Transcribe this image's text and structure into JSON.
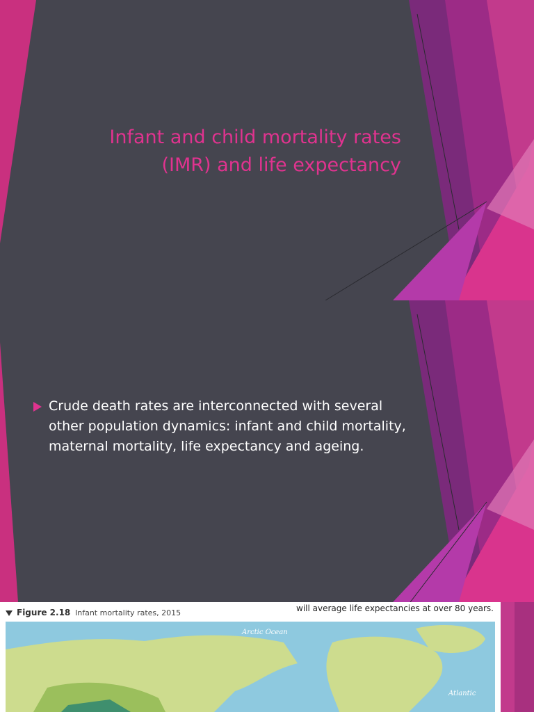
{
  "slides": [
    {
      "title": "Infant and child mortality rates (IMR) and life expectancy"
    },
    {
      "bullet": "Crude death rates are interconnected with several other population dynamics: infant and child mortality, maternal mortality, life expectancy and ageing."
    },
    {
      "figure": {
        "number": "Figure 2.18",
        "caption": "Infant mortality rates, 2015",
        "header_text": "will average life expectancies at over 80 years.",
        "labels": [
          "Arctic Ocean",
          "Atlantic"
        ]
      }
    }
  ]
}
